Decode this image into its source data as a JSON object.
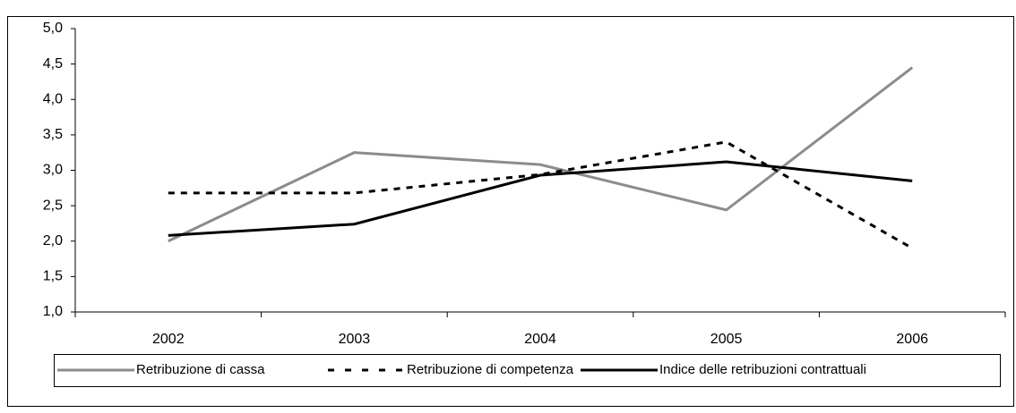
{
  "chart_data": {
    "type": "line",
    "categories": [
      "2002",
      "2003",
      "2004",
      "2005",
      "2006"
    ],
    "series": [
      {
        "name": "Retribuzione di cassa",
        "color": "#8c8c8c",
        "style": "solid",
        "values": [
          2.0,
          3.25,
          3.08,
          2.44,
          4.45
        ]
      },
      {
        "name": "Retribuzione di competenza",
        "color": "#000000",
        "style": "dashed",
        "values": [
          2.68,
          2.68,
          2.94,
          3.4,
          1.9
        ]
      },
      {
        "name": "Indice delle retribuzioni contrattuali",
        "color": "#000000",
        "style": "solid",
        "values": [
          2.08,
          2.24,
          2.93,
          3.12,
          2.85
        ]
      }
    ],
    "ylim": [
      1,
      5
    ],
    "yticks": [
      {
        "value": 1,
        "label": "1,0"
      },
      {
        "value": 1.5,
        "label": "1,5"
      },
      {
        "value": 2,
        "label": "2,0"
      },
      {
        "value": 2.5,
        "label": "2,5"
      },
      {
        "value": 3,
        "label": "3,0"
      },
      {
        "value": 3.5,
        "label": "3,5"
      },
      {
        "value": 4,
        "label": "4,0"
      },
      {
        "value": 4.5,
        "label": "4,5"
      },
      {
        "value": 5,
        "label": "5,0"
      }
    ],
    "grid": false,
    "legend": "bottom"
  }
}
